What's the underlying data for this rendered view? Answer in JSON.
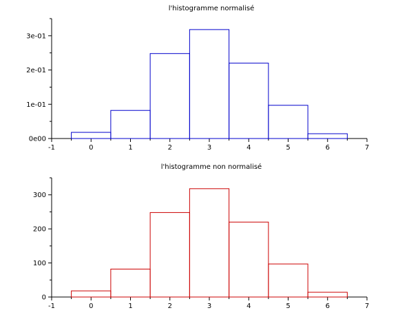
{
  "chart_data": [
    {
      "type": "bar",
      "title": "l'histogramme normalisé",
      "xlabel": "",
      "ylabel": "",
      "color": "#0000cc",
      "xlim": [
        -1,
        7
      ],
      "ylim": [
        0,
        0.35
      ],
      "x_ticks": [
        -1,
        0,
        1,
        2,
        3,
        4,
        5,
        6,
        7
      ],
      "x_tick_labels": [
        "-1",
        "0",
        "1",
        "2",
        "3",
        "4",
        "5",
        "6",
        "7"
      ],
      "y_ticks": [
        0,
        0.1,
        0.2,
        0.3
      ],
      "y_tick_labels": [
        "0e00",
        "1e-01",
        "2e-01",
        "3e-01"
      ],
      "bins": [
        {
          "from": -0.5,
          "to": 0.5,
          "value": 0.018
        },
        {
          "from": 0.5,
          "to": 1.5,
          "value": 0.082
        },
        {
          "from": 1.5,
          "to": 2.5,
          "value": 0.248
        },
        {
          "from": 2.5,
          "to": 3.5,
          "value": 0.318
        },
        {
          "from": 3.5,
          "to": 4.5,
          "value": 0.22
        },
        {
          "from": 4.5,
          "to": 5.5,
          "value": 0.097
        },
        {
          "from": 5.5,
          "to": 6.5,
          "value": 0.014
        }
      ]
    },
    {
      "type": "bar",
      "title": "l'histogramme non normalisé",
      "xlabel": "",
      "ylabel": "",
      "color": "#cc0000",
      "xlim": [
        -1,
        7
      ],
      "ylim": [
        0,
        350
      ],
      "x_ticks": [
        -1,
        0,
        1,
        2,
        3,
        4,
        5,
        6,
        7
      ],
      "x_tick_labels": [
        "-1",
        "0",
        "1",
        "2",
        "3",
        "4",
        "5",
        "6",
        "7"
      ],
      "y_ticks": [
        0,
        100,
        200,
        300
      ],
      "y_tick_labels": [
        "0",
        "100",
        "200",
        "300"
      ],
      "bins": [
        {
          "from": -0.5,
          "to": 0.5,
          "value": 18
        },
        {
          "from": 0.5,
          "to": 1.5,
          "value": 82
        },
        {
          "from": 1.5,
          "to": 2.5,
          "value": 248
        },
        {
          "from": 2.5,
          "to": 3.5,
          "value": 318
        },
        {
          "from": 3.5,
          "to": 4.5,
          "value": 220
        },
        {
          "from": 4.5,
          "to": 5.5,
          "value": 97
        },
        {
          "from": 5.5,
          "to": 6.5,
          "value": 14
        }
      ]
    }
  ]
}
